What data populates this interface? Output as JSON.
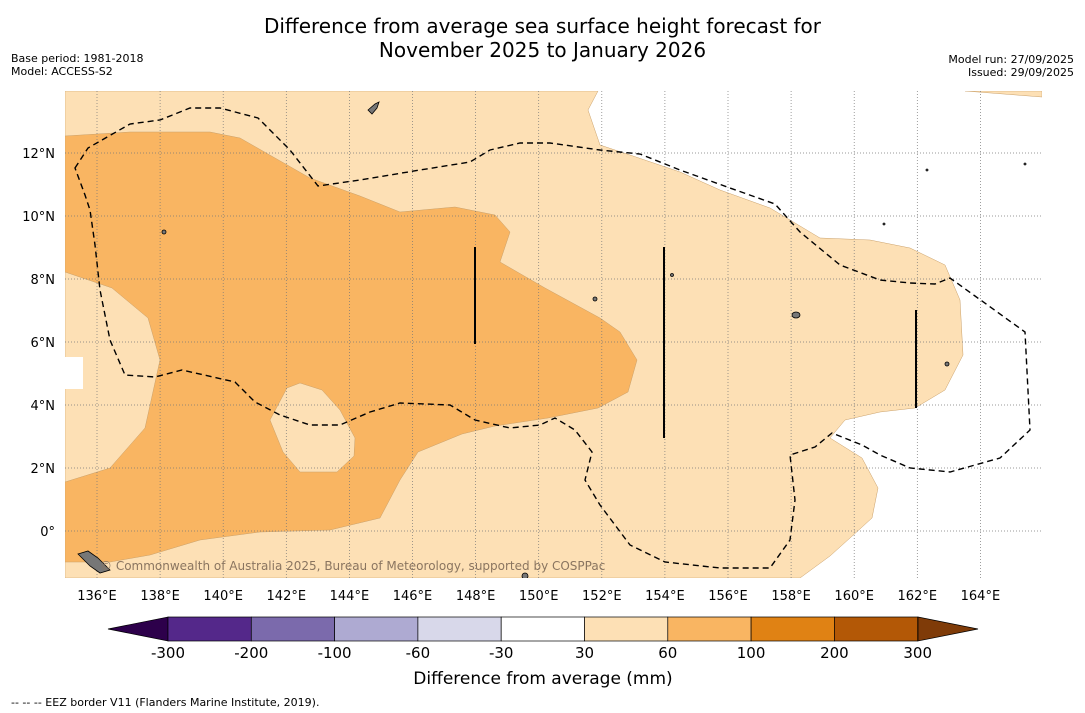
{
  "title": {
    "line1": "Difference from average sea surface height forecast for",
    "line2": "November 2025 to January 2026"
  },
  "meta": {
    "base_period": "Base period: 1981-2018",
    "model": "Model: ACCESS-S2",
    "model_run": "Model run: 27/09/2025",
    "issued": "Issued: 29/09/2025"
  },
  "map": {
    "lon_labels": [
      "136°E",
      "138°E",
      "140°E",
      "142°E",
      "144°E",
      "146°E",
      "148°E",
      "150°E",
      "152°E",
      "154°E",
      "156°E",
      "158°E",
      "160°E",
      "162°E",
      "164°E"
    ],
    "lat_labels": [
      "12°N",
      "10°N",
      "8°N",
      "6°N",
      "4°N",
      "2°N",
      "0°"
    ],
    "watermark": "© Commonwealth of Australia 2025, Bureau of Meteorology, supported by COSPPac"
  },
  "colorbar": {
    "ticks": [
      "-300",
      "-200",
      "-100",
      "-60",
      "-30",
      "30",
      "60",
      "100",
      "200",
      "300"
    ],
    "colors": [
      "#54288a",
      "#7b6aac",
      "#aeaad2",
      "#d8d8ea",
      "#ffffff",
      "#fde0b5",
      "#f9b562",
      "#e08214",
      "#b35806"
    ],
    "under_color": "#2d004b",
    "over_color": "#7f3b08",
    "label": "Difference from average (mm)"
  },
  "footer": "--  --  -- EEZ border V11 (Flanders Marine Institute, 2019)."
}
